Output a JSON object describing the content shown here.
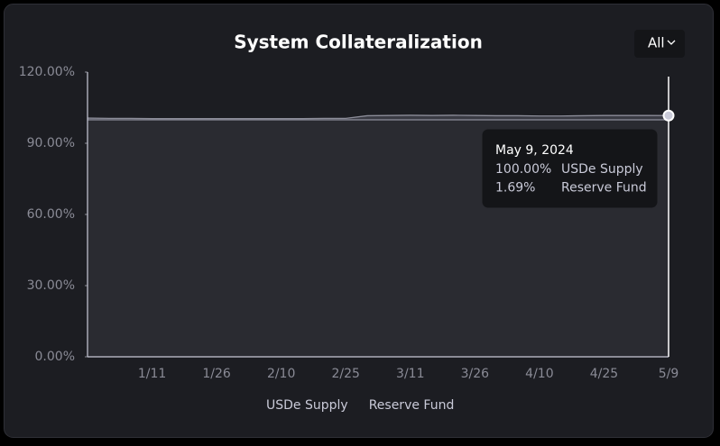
{
  "chart_data": {
    "type": "area",
    "stacked": true,
    "title": "System Collateralization",
    "range_selector": "All",
    "categories": [
      null,
      null,
      null,
      "1/11",
      null,
      null,
      "1/26",
      null,
      null,
      "2/10",
      null,
      null,
      "2/25",
      null,
      null,
      "3/11",
      null,
      null,
      "3/26",
      null,
      null,
      "4/10",
      null,
      null,
      "4/25",
      null,
      null,
      "5/9"
    ],
    "series": [
      {
        "name": "USDe Supply",
        "color": "#c9cad8",
        "fill": "#2a2b31",
        "values": [
          100,
          100,
          100,
          100,
          100,
          100,
          100,
          100,
          100,
          100,
          100,
          100,
          100,
          100,
          100,
          100,
          100,
          100,
          100,
          100,
          100,
          100,
          100,
          100,
          100,
          100,
          100,
          100
        ]
      },
      {
        "name": "Reserve Fund",
        "color": "#8c8d99",
        "fill": "#3a3b44",
        "values": [
          0.6,
          0.5,
          0.5,
          0.4,
          0.4,
          0.4,
          0.4,
          0.4,
          0.4,
          0.4,
          0.4,
          0.5,
          0.5,
          1.6,
          1.7,
          1.8,
          1.7,
          1.8,
          1.7,
          1.6,
          1.6,
          1.5,
          1.5,
          1.6,
          1.7,
          1.7,
          1.7,
          1.69
        ]
      }
    ],
    "ylim": [
      0,
      120
    ],
    "yticks": [
      {
        "value": 0,
        "label": "0.00%"
      },
      {
        "value": 30,
        "label": "30.00%"
      },
      {
        "value": 60,
        "label": "60.00%"
      },
      {
        "value": 90,
        "label": "90.00%"
      },
      {
        "value": 120,
        "label": "120.00%"
      }
    ],
    "tooltip": {
      "title": "May 9, 2024",
      "rows": [
        {
          "value": "100.00%",
          "name": "USDe Supply"
        },
        {
          "value": "1.69%",
          "name": "Reserve Fund"
        }
      ]
    }
  }
}
